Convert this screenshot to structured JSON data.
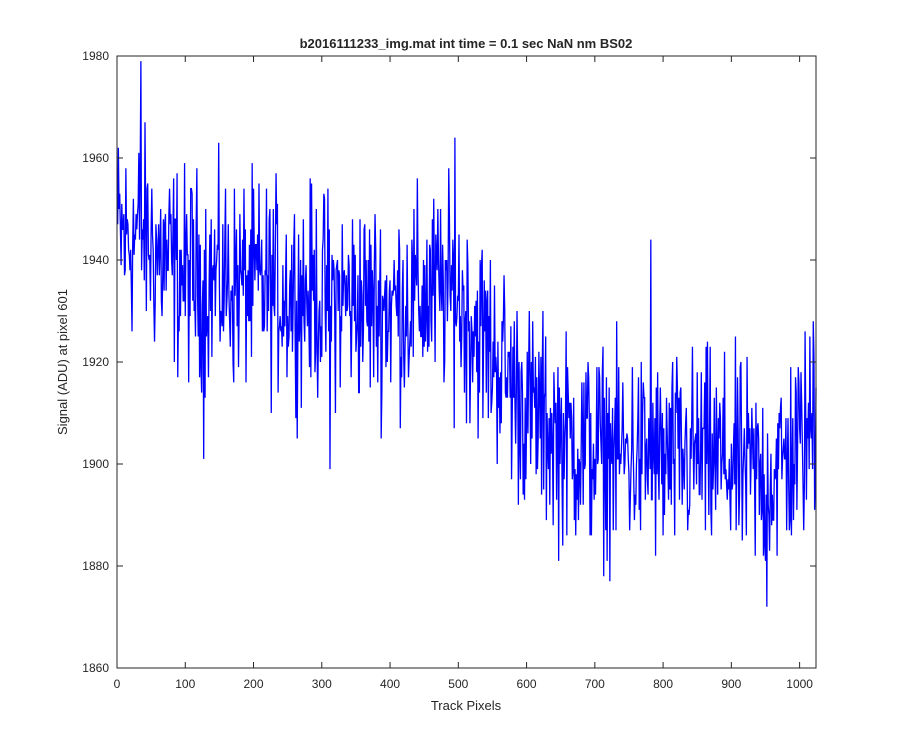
{
  "chart_data": {
    "type": "line",
    "title": "b2016111233_img.mat int time = 0.1 sec  NaN nm BS02",
    "xlabel": "Track Pixels",
    "ylabel": "Signal (ADU) at pixel 601",
    "xlim": [
      0,
      1024
    ],
    "ylim": [
      1860,
      1980
    ],
    "xticks": [
      0,
      100,
      200,
      300,
      400,
      500,
      600,
      700,
      800,
      900,
      1000
    ],
    "yticks": [
      1860,
      1880,
      1900,
      1920,
      1940,
      1960,
      1980
    ],
    "grid": false,
    "series": [
      {
        "color": "#0000ff",
        "trend": {
          "x": [
            0,
            20,
            35,
            60,
            100,
            200,
            300,
            400,
            480,
            500,
            520,
            560,
            600,
            650,
            700,
            750,
            800,
            850,
            900,
            950,
            990,
            1024
          ],
          "y": [
            1945,
            1944,
            1946,
            1941,
            1937,
            1935,
            1933,
            1931,
            1934,
            1932,
            1928,
            1920,
            1911,
            1905,
            1903,
            1902,
            1900,
            1902,
            1900,
            1897,
            1902,
            1908
          ]
        },
        "amplitude": 10,
        "highlight_points": {
          "x": [
            35,
            127,
            312,
            495,
            782,
            952,
            1020
          ],
          "y": [
            1979,
            1901,
            1899,
            1964,
            1944,
            1872,
            1928
          ]
        }
      }
    ]
  }
}
